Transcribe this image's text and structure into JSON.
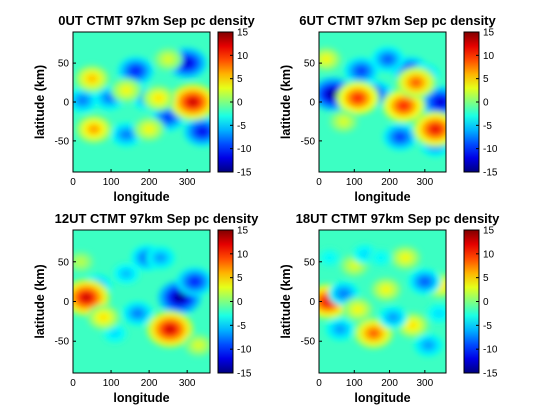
{
  "chart_data": [
    {
      "type": "heatmap",
      "title": "0UT CTMT 97km Sep pc density",
      "xlabel": "longitude",
      "ylabel": "latitude (km)",
      "xlim": [
        0,
        360
      ],
      "ylim": [
        -90,
        90
      ],
      "x_ticks": [
        0,
        100,
        200,
        300
      ],
      "y_ticks": [
        50,
        0,
        -50
      ],
      "colorbar": {
        "range": [
          -15,
          15
        ],
        "ticks": [
          15,
          10,
          5,
          0,
          -5,
          -10,
          -15
        ]
      },
      "features": [
        {
          "lon": 300,
          "lat": 50,
          "value": -13
        },
        {
          "lon": 165,
          "lat": 40,
          "value": -11
        },
        {
          "lon": 95,
          "lat": 5,
          "value": -8
        },
        {
          "lon": 25,
          "lat": 2,
          "value": -8
        },
        {
          "lon": 195,
          "lat": 5,
          "value": -8
        },
        {
          "lon": 250,
          "lat": -20,
          "value": -10
        },
        {
          "lon": 340,
          "lat": -38,
          "value": -12
        },
        {
          "lon": 140,
          "lat": -42,
          "value": -8
        },
        {
          "lon": 315,
          "lat": 0,
          "value": 13
        },
        {
          "lon": 50,
          "lat": 30,
          "value": 6
        },
        {
          "lon": 55,
          "lat": -35,
          "value": 7
        },
        {
          "lon": 225,
          "lat": 5,
          "value": 5
        },
        {
          "lon": 140,
          "lat": 15,
          "value": 4
        },
        {
          "lon": 250,
          "lat": 55,
          "value": 3
        },
        {
          "lon": 200,
          "lat": -35,
          "value": 4
        }
      ]
    },
    {
      "type": "heatmap",
      "title": "6UT CTMT 97km Sep pc density",
      "xlabel": "longitude",
      "ylabel": "latitude (km)",
      "xlim": [
        0,
        360
      ],
      "ylim": [
        -90,
        90
      ],
      "x_ticks": [
        0,
        100,
        200,
        300
      ],
      "y_ticks": [
        50,
        0,
        -50
      ],
      "colorbar": {
        "range": [
          -15,
          15
        ],
        "ticks": [
          15,
          10,
          5,
          0,
          -5,
          -10,
          -15
        ]
      },
      "features": [
        {
          "lon": 40,
          "lat": 10,
          "value": -15
        },
        {
          "lon": 120,
          "lat": 40,
          "value": -10
        },
        {
          "lon": 160,
          "lat": 10,
          "value": -10
        },
        {
          "lon": 260,
          "lat": 40,
          "value": -11
        },
        {
          "lon": 195,
          "lat": 55,
          "value": -9
        },
        {
          "lon": 230,
          "lat": -45,
          "value": -10
        },
        {
          "lon": 345,
          "lat": 0,
          "value": -13
        },
        {
          "lon": 300,
          "lat": 35,
          "value": -7
        },
        {
          "lon": 330,
          "lat": -55,
          "value": -8
        },
        {
          "lon": 110,
          "lat": 5,
          "value": 11
        },
        {
          "lon": 240,
          "lat": -5,
          "value": 11
        },
        {
          "lon": 275,
          "lat": 25,
          "value": 9
        },
        {
          "lon": 330,
          "lat": -35,
          "value": 12
        },
        {
          "lon": 20,
          "lat": 55,
          "value": 4
        },
        {
          "lon": 70,
          "lat": -25,
          "value": 3
        }
      ]
    },
    {
      "type": "heatmap",
      "title": "12UT CTMT 97km Sep pc density",
      "xlabel": "longitude",
      "ylabel": "latitude (km)",
      "xlim": [
        0,
        360
      ],
      "ylim": [
        -90,
        90
      ],
      "x_ticks": [
        0,
        100,
        200,
        300
      ],
      "y_ticks": [
        50,
        0,
        -50
      ],
      "colorbar": {
        "range": [
          -15,
          15
        ],
        "ticks": [
          15,
          10,
          5,
          0,
          -5,
          -10,
          -15
        ]
      },
      "features": [
        {
          "lon": 280,
          "lat": 5,
          "value": -15
        },
        {
          "lon": 320,
          "lat": 25,
          "value": -11
        },
        {
          "lon": 195,
          "lat": 55,
          "value": -9
        },
        {
          "lon": 230,
          "lat": 55,
          "value": -7
        },
        {
          "lon": 140,
          "lat": 35,
          "value": -6
        },
        {
          "lon": 65,
          "lat": 20,
          "value": -7
        },
        {
          "lon": 170,
          "lat": -15,
          "value": -8
        },
        {
          "lon": 110,
          "lat": -40,
          "value": -5
        },
        {
          "lon": 35,
          "lat": 5,
          "value": 13
        },
        {
          "lon": 255,
          "lat": -35,
          "value": 13
        },
        {
          "lon": 80,
          "lat": -20,
          "value": 5
        },
        {
          "lon": 20,
          "lat": 50,
          "value": 2
        },
        {
          "lon": 330,
          "lat": -55,
          "value": 3
        }
      ]
    },
    {
      "type": "heatmap",
      "title": "18UT CTMT 97km Sep pc density",
      "xlabel": "longitude",
      "ylabel": "latitude (km)",
      "xlim": [
        0,
        360
      ],
      "ylim": [
        -90,
        90
      ],
      "x_ticks": [
        0,
        100,
        200,
        300
      ],
      "y_ticks": [
        50,
        0,
        -50
      ],
      "colorbar": {
        "range": [
          -15,
          15
        ],
        "ticks": [
          15,
          10,
          5,
          0,
          -5,
          -10,
          -15
        ]
      },
      "features": [
        {
          "lon": 25,
          "lat": 0,
          "value": 12
        },
        {
          "lon": 155,
          "lat": -40,
          "value": 9
        },
        {
          "lon": 245,
          "lat": 55,
          "value": 4
        },
        {
          "lon": 265,
          "lat": -30,
          "value": 5
        },
        {
          "lon": 345,
          "lat": 20,
          "value": 5
        },
        {
          "lon": 190,
          "lat": 15,
          "value": 4
        },
        {
          "lon": 100,
          "lat": 45,
          "value": 3
        },
        {
          "lon": 70,
          "lat": 10,
          "value": -8
        },
        {
          "lon": 60,
          "lat": -35,
          "value": -7
        },
        {
          "lon": 210,
          "lat": -20,
          "value": -7
        },
        {
          "lon": 300,
          "lat": 25,
          "value": -9
        },
        {
          "lon": 310,
          "lat": -55,
          "value": -7
        },
        {
          "lon": 130,
          "lat": 60,
          "value": -5
        },
        {
          "lon": 175,
          "lat": 55,
          "value": -4
        },
        {
          "lon": 30,
          "lat": 55,
          "value": -4
        },
        {
          "lon": 110,
          "lat": -10,
          "value": 4
        },
        {
          "lon": 340,
          "lat": -15,
          "value": -5
        }
      ]
    }
  ]
}
